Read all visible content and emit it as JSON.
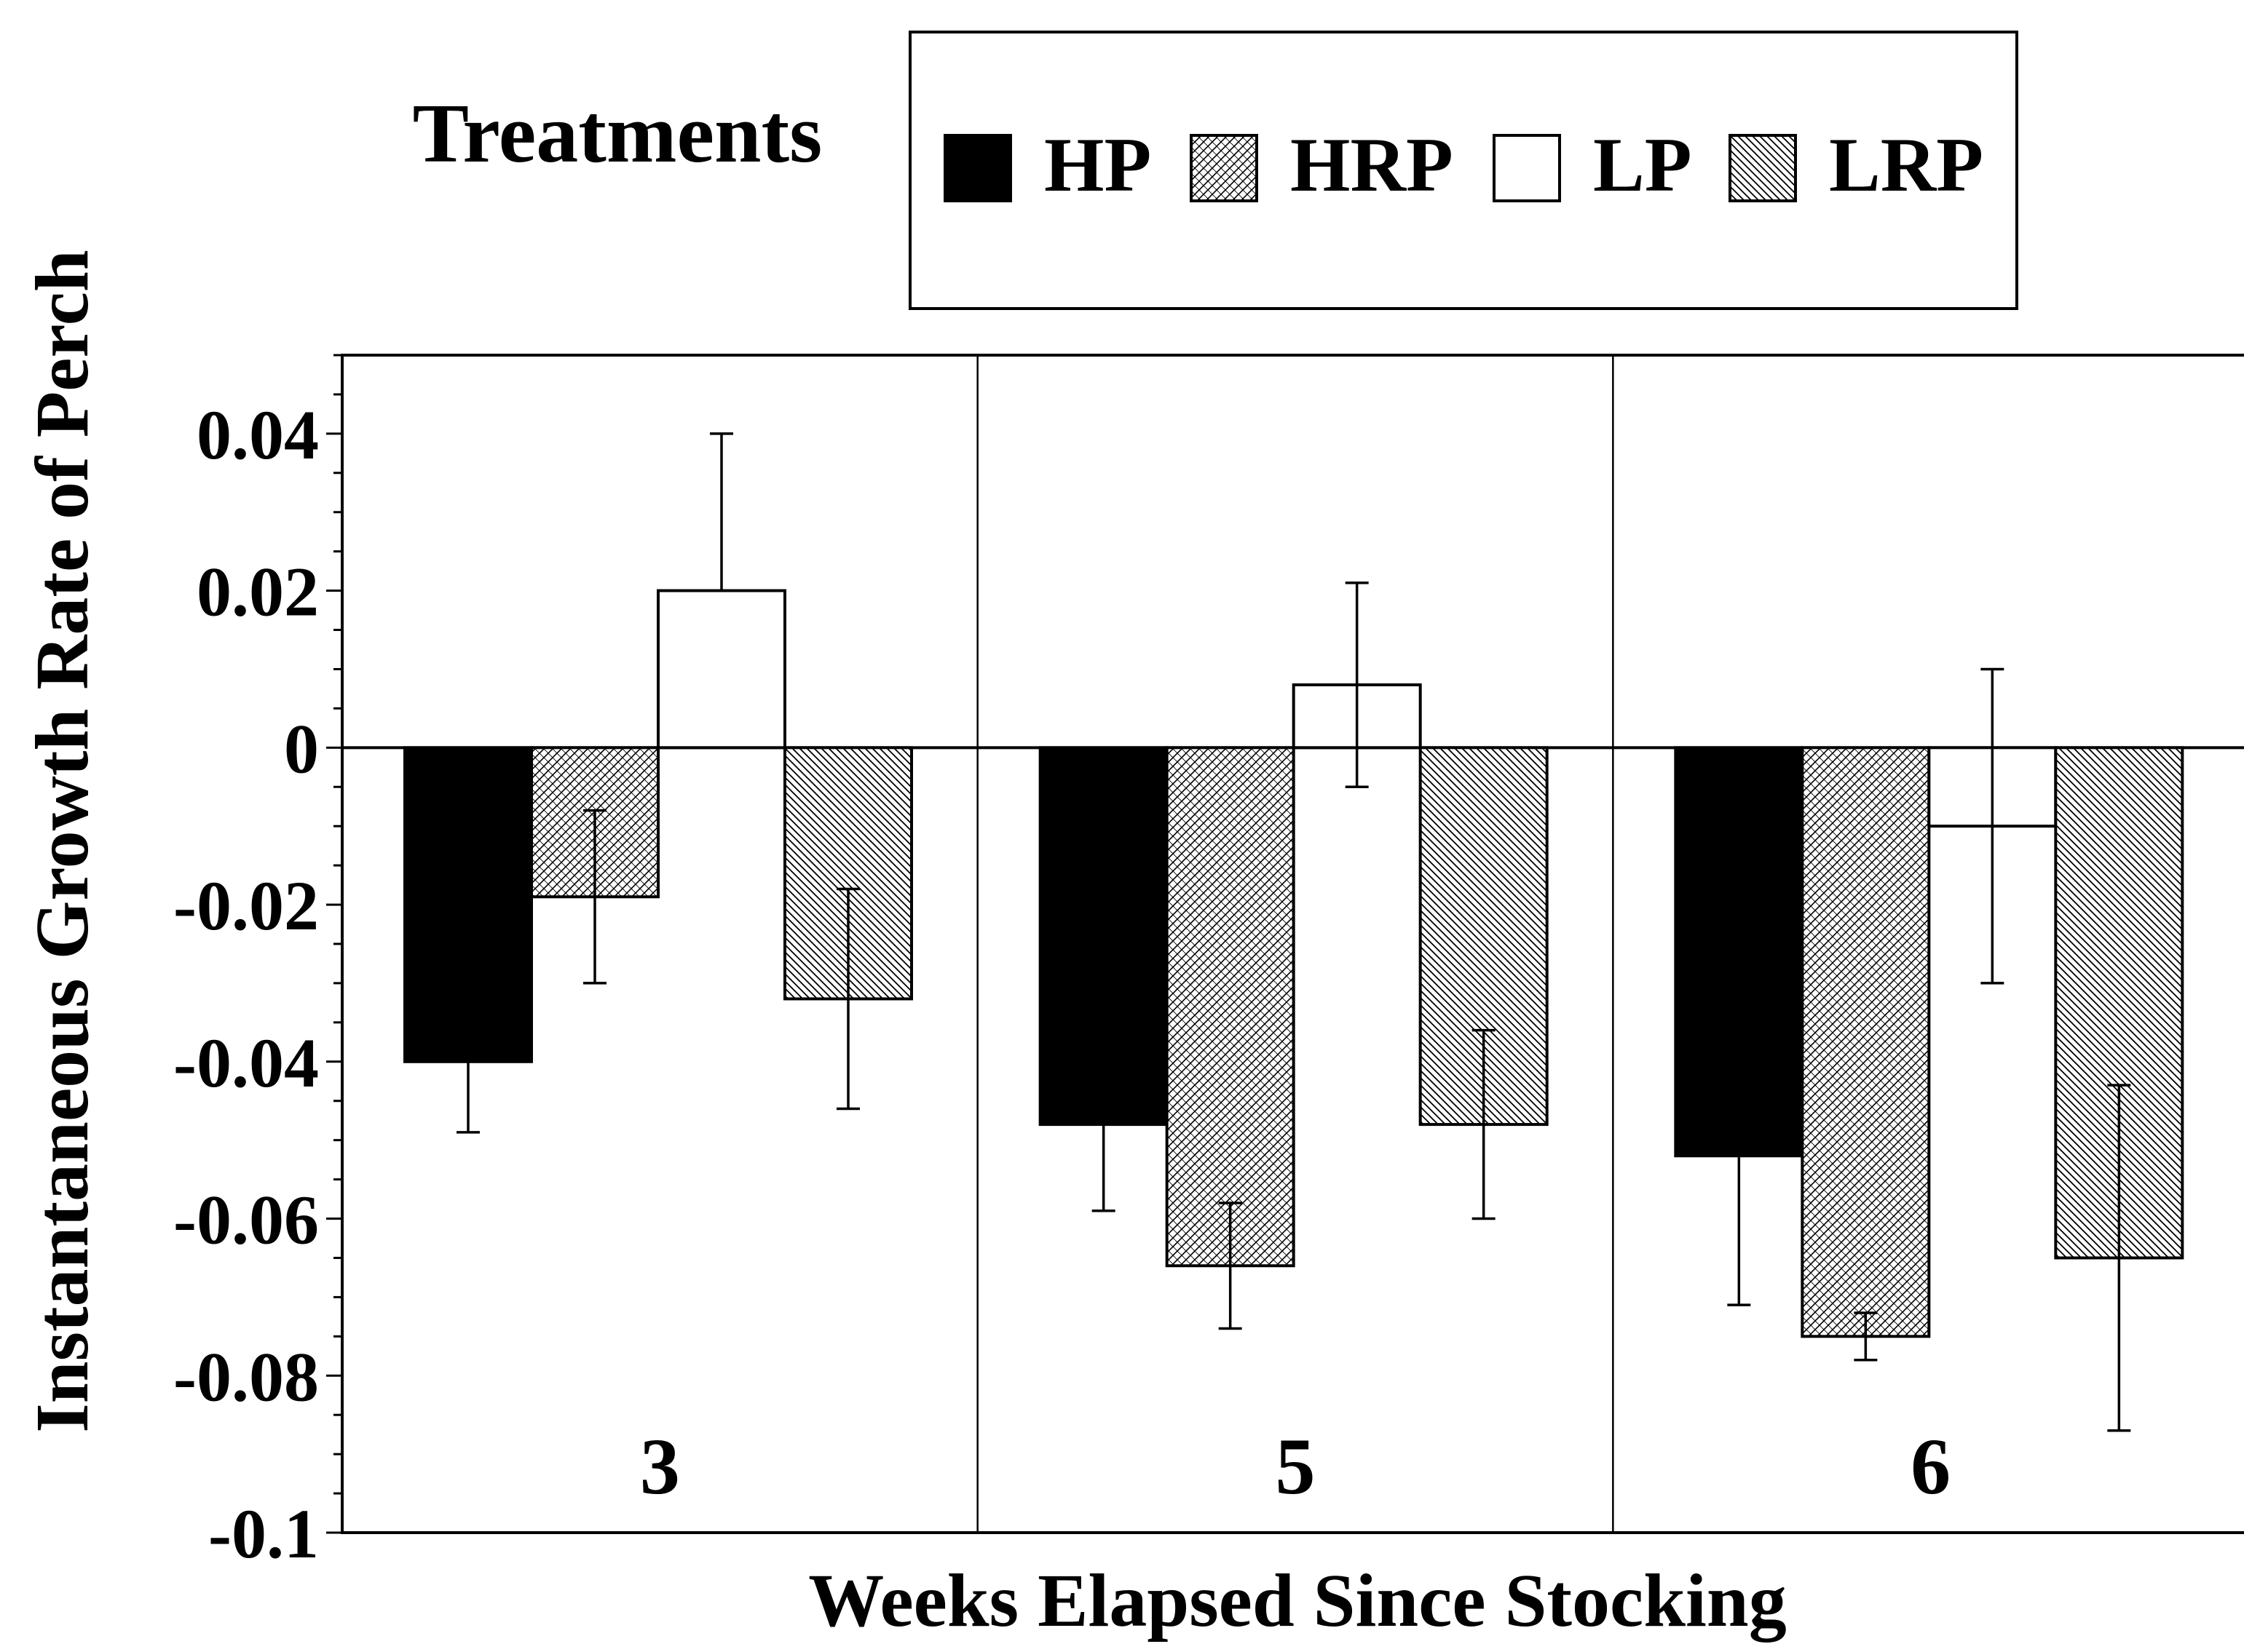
{
  "chart_data": {
    "type": "bar",
    "title": "",
    "xlabel": "Weeks Elapsed Since Stocking",
    "ylabel": "Instantaneous Growth Rate of Perch",
    "ylim": [
      -0.1,
      0.05
    ],
    "yticks": [
      0.04,
      0.02,
      0,
      -0.02,
      -0.04,
      -0.06,
      -0.08,
      -0.1
    ],
    "ytick_labels": [
      "0.04",
      "0.02",
      "0",
      "-0.02",
      "-0.04",
      "-0.06",
      "-0.08",
      "-0.1"
    ],
    "categories": [
      "3",
      "5",
      "6"
    ],
    "legend": {
      "title": "Treatments",
      "placement": "top"
    },
    "series": [
      {
        "name": "HP",
        "fill": "#000000",
        "pattern": "solid",
        "values": [
          -0.04,
          -0.048,
          -0.052
        ],
        "err_low": [
          -0.049,
          -0.059,
          -0.071
        ],
        "err_high": [
          -0.04,
          -0.048,
          -0.052
        ]
      },
      {
        "name": "HRP",
        "fill": "#ffffff",
        "pattern": "crosshatch-fine",
        "values": [
          -0.019,
          -0.066,
          -0.075
        ],
        "err_low": [
          -0.03,
          -0.074,
          -0.078
        ],
        "err_high": [
          -0.008,
          -0.058,
          -0.072
        ]
      },
      {
        "name": "LP",
        "fill": "#ffffff",
        "pattern": "none",
        "values": [
          0.02,
          0.008,
          -0.01
        ],
        "err_low": [
          0.02,
          -0.005,
          -0.03
        ],
        "err_high": [
          0.04,
          0.021,
          0.01
        ]
      },
      {
        "name": "LRP",
        "fill": "#ffffff",
        "pattern": "diagonal-back",
        "values": [
          -0.032,
          -0.048,
          -0.065
        ],
        "err_low": [
          -0.046,
          -0.06,
          -0.087
        ],
        "err_high": [
          -0.018,
          -0.036,
          -0.043
        ]
      }
    ]
  }
}
